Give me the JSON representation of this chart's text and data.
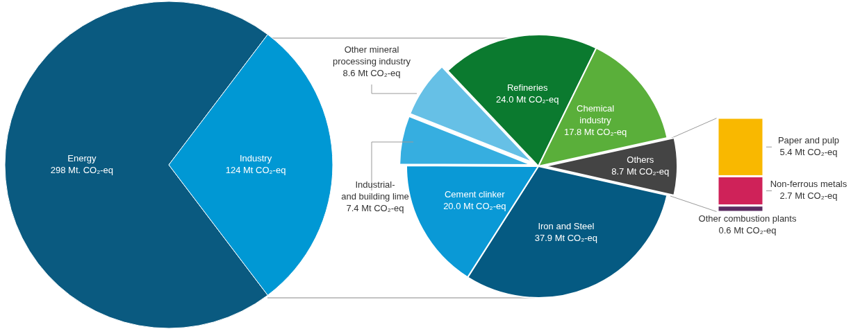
{
  "chart_data": [
    {
      "type": "pie",
      "categories": [
        "Energy",
        "Industry"
      ],
      "values": [
        298,
        124
      ],
      "colors": [
        "#0a5a80",
        "#0098d4"
      ],
      "value_labels": [
        "298 Mt. CO₂-eq",
        "124 Mt CO₂-eq"
      ]
    },
    {
      "type": "pie",
      "categories": [
        "Refineries",
        "Chemical industry",
        "Others",
        "Iron and Steel",
        "Cement clinker",
        "Industrial- and building lime",
        "Other mineral processing industry"
      ],
      "values": [
        24.0,
        17.8,
        8.7,
        37.9,
        20.0,
        7.4,
        8.6
      ],
      "colors": [
        "#0b7a2f",
        "#5aaf3a",
        "#444444",
        "#055a82",
        "#0a99d6",
        "#36aee0",
        "#66c0e6"
      ],
      "value_labels": [
        "24.0 Mt CO₂-eq",
        "17.8 Mt CO₂-eq",
        "8.7 Mt CO₂-eq",
        "37.9 Mt CO₂-eq",
        "20.0 Mt CO₂-eq",
        "7.4 Mt CO₂-eq",
        "8.6 Mt CO₂-eq"
      ]
    },
    {
      "type": "bar",
      "stacked": true,
      "categories": [
        null
      ],
      "series": [
        {
          "name": "Other combustion plants",
          "color": "#5b2c62",
          "values": [
            0.6
          ],
          "value_labels": [
            "0.6 Mt CO₂-eq"
          ]
        },
        {
          "name": "Non-ferrous metals",
          "color": "#cf2259",
          "values": [
            2.7
          ],
          "value_labels": [
            "2.7 Mt CO₂-eq"
          ]
        },
        {
          "name": "Paper and pulp",
          "color": "#f9b800",
          "values": [
            5.4
          ],
          "value_labels": [
            "5.4 Mt CO₂-eq"
          ]
        }
      ]
    }
  ]
}
